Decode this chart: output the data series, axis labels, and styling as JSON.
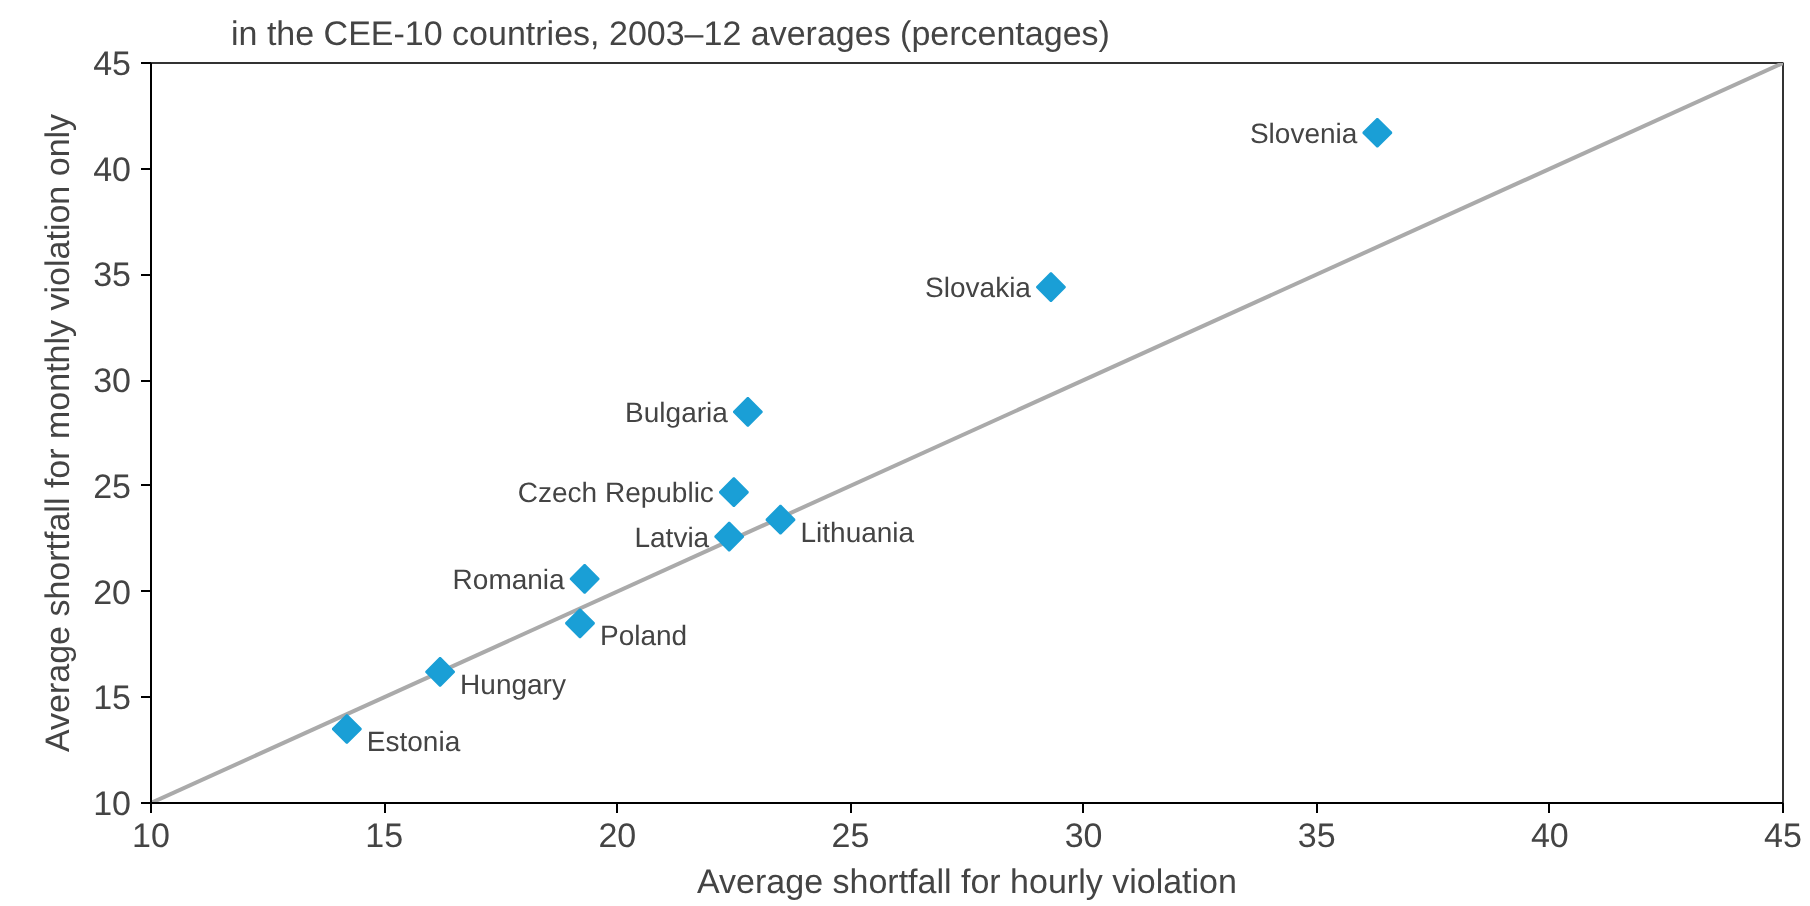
{
  "chart_data": {
    "type": "scatter",
    "title": "in the CEE-10 countries, 2003–12 averages (percentages)",
    "xlabel": "Average shortfall for hourly violation",
    "ylabel": "Average shortfall for monthly violation only",
    "xlim": [
      10,
      45
    ],
    "ylim": [
      10,
      45
    ],
    "xticks": [
      10,
      15,
      20,
      25,
      30,
      35,
      40,
      45
    ],
    "yticks": [
      10,
      15,
      20,
      25,
      30,
      35,
      40,
      45
    ],
    "grid": false,
    "series": [
      {
        "type": "line",
        "color": "#aaaaaa",
        "x": [
          10,
          45
        ],
        "values": [
          10,
          45
        ]
      },
      {
        "marker": "diamond",
        "color": "#1a9fd6",
        "x": [
          36.3,
          29.3,
          22.8,
          22.5,
          22.4,
          23.5,
          19.3,
          19.2,
          16.2,
          14.2
        ],
        "values": [
          41.7,
          34.4,
          28.5,
          24.7,
          22.6,
          23.4,
          20.6,
          18.5,
          16.2,
          13.5
        ]
      }
    ],
    "annotations": [
      {
        "text": "Slovenia",
        "x": 36.3,
        "y": 41.7
      },
      {
        "text": "Slovakia",
        "x": 29.3,
        "y": 34.4
      },
      {
        "text": "Bulgaria",
        "x": 22.8,
        "y": 28.5
      },
      {
        "text": "Czech Republic",
        "x": 22.5,
        "y": 24.7
      },
      {
        "text": "Latvia",
        "x": 22.4,
        "y": 22.6
      },
      {
        "text": "Lithuania",
        "x": 23.5,
        "y": 23.4
      },
      {
        "text": "Romania",
        "x": 19.3,
        "y": 20.6
      },
      {
        "text": "Poland",
        "x": 19.2,
        "y": 18.5
      },
      {
        "text": "Hungary",
        "x": 16.2,
        "y": 16.2
      },
      {
        "text": "Estonia",
        "x": 14.2,
        "y": 13.5
      }
    ]
  }
}
